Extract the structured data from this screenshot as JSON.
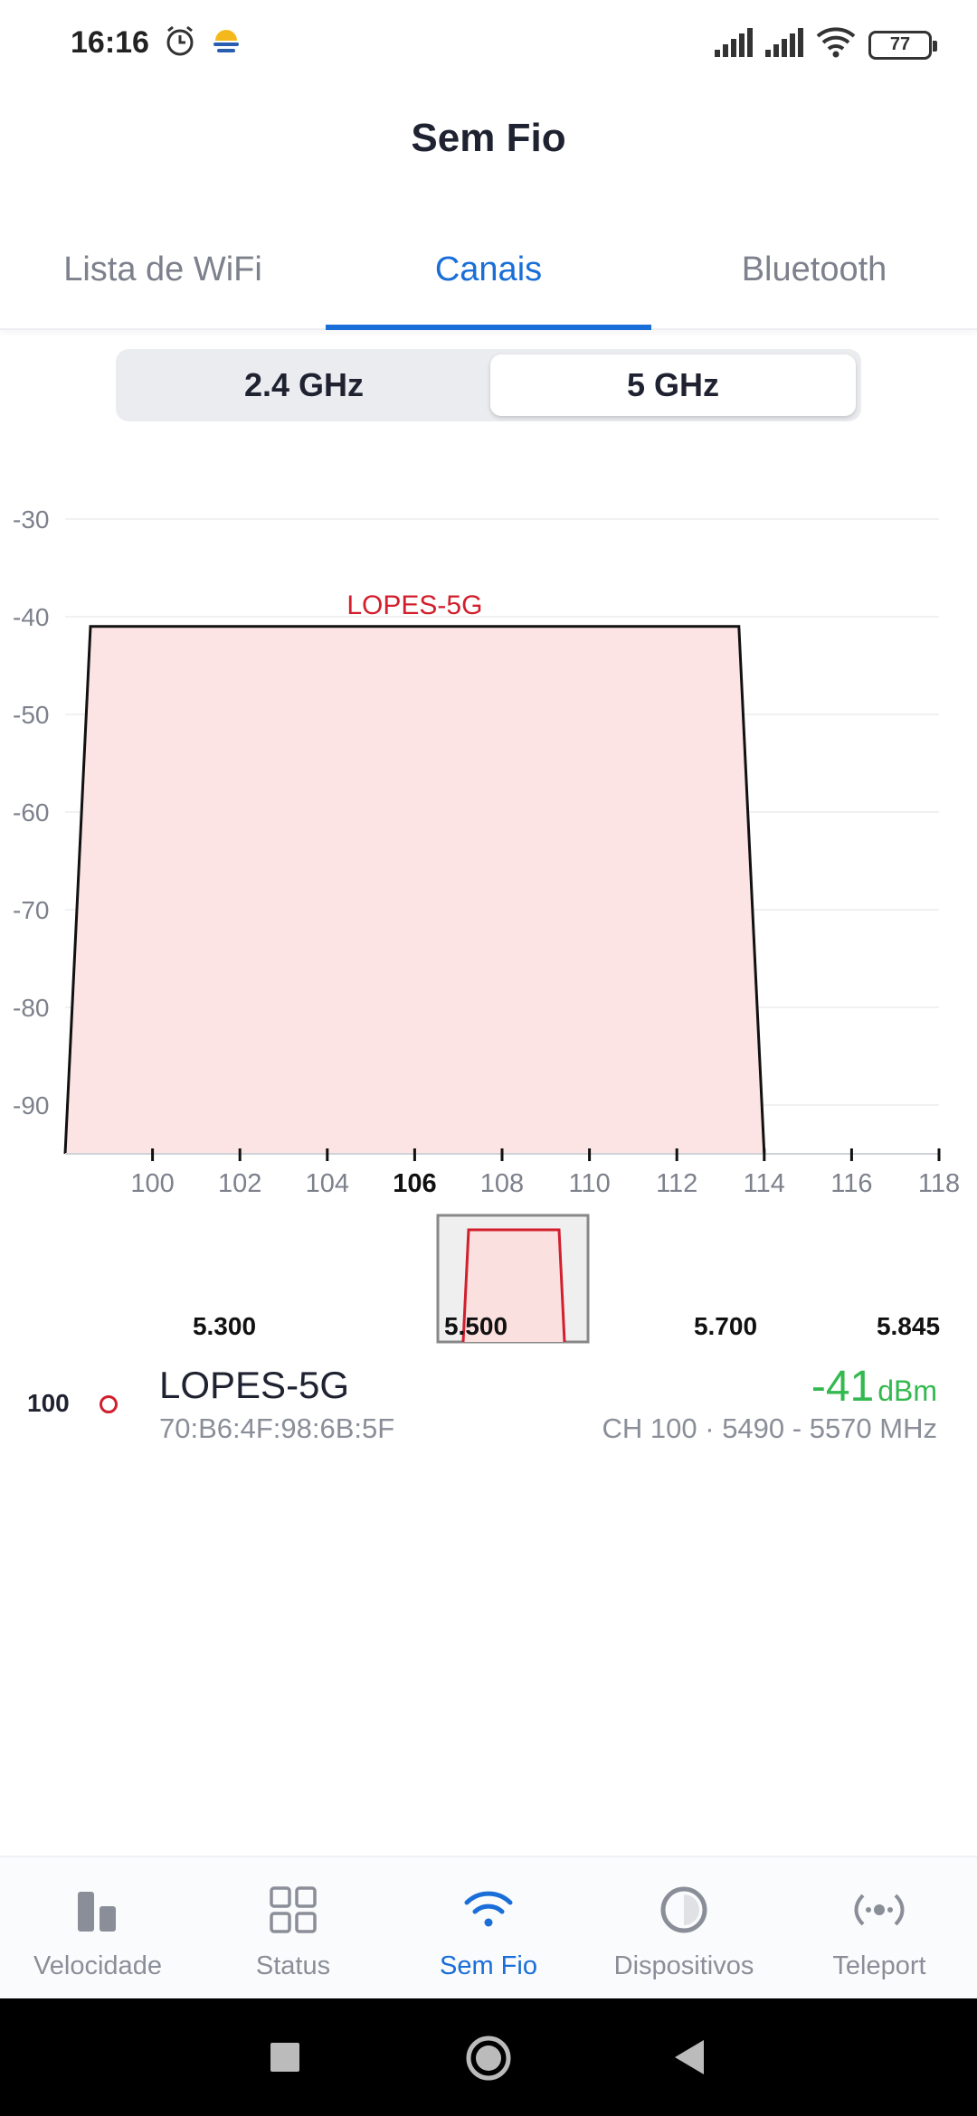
{
  "status_bar": {
    "time": "16:16",
    "battery": "77",
    "icons": [
      "alarm-icon",
      "weather-icon",
      "signal-icon",
      "signal-icon",
      "wifi-icon",
      "battery-icon"
    ]
  },
  "page": {
    "title": "Sem Fio"
  },
  "tabs": [
    {
      "label": "Lista de WiFi",
      "active": false
    },
    {
      "label": "Canais",
      "active": true
    },
    {
      "label": "Bluetooth",
      "active": false
    }
  ],
  "band_toggle": {
    "options": [
      "2.4 GHz",
      "5 GHz"
    ],
    "selected": "5 GHz"
  },
  "chart_data": {
    "type": "area",
    "y_ticks": [
      "-30",
      "-40",
      "-50",
      "-60",
      "-70",
      "-80",
      "-90"
    ],
    "ylim": [
      -95,
      -25
    ],
    "x_ticks": [
      "100",
      "102",
      "104",
      "106",
      "108",
      "110",
      "112",
      "114",
      "116",
      "118"
    ],
    "x_highlighted": "106",
    "xlim": [
      98,
      118
    ],
    "grid": true,
    "series": [
      {
        "name": "LOPES-5G",
        "channel_start": 98,
        "channel_end": 114,
        "signal_dbm": -41,
        "color": "#d21f2d",
        "fill": "#fde4e4"
      }
    ]
  },
  "overview": {
    "ticks": [
      "5.300",
      "5.500",
      "5.700",
      "5.845"
    ]
  },
  "networks": [
    {
      "channel": "100",
      "ssid": "LOPES-5G",
      "mac": "70:B6:4F:98:6B:5F",
      "signal_value": "-41",
      "signal_unit": "dBm",
      "info": "CH 100 · 5490 - 5570 MHz",
      "color": "#d21f2d"
    }
  ],
  "bottom_nav": [
    {
      "label": "Velocidade",
      "icon": "speed-bars-icon",
      "active": false
    },
    {
      "label": "Status",
      "icon": "grid-icon",
      "active": false
    },
    {
      "label": "Sem Fio",
      "icon": "wifi-icon",
      "active": true
    },
    {
      "label": "Dispositivos",
      "icon": "circle-icon",
      "active": false
    },
    {
      "label": "Teleport",
      "icon": "teleport-icon",
      "active": false
    }
  ],
  "colors": {
    "accent": "#1a6ed8",
    "signal_good": "#33b94f",
    "network": "#d21f2d"
  }
}
